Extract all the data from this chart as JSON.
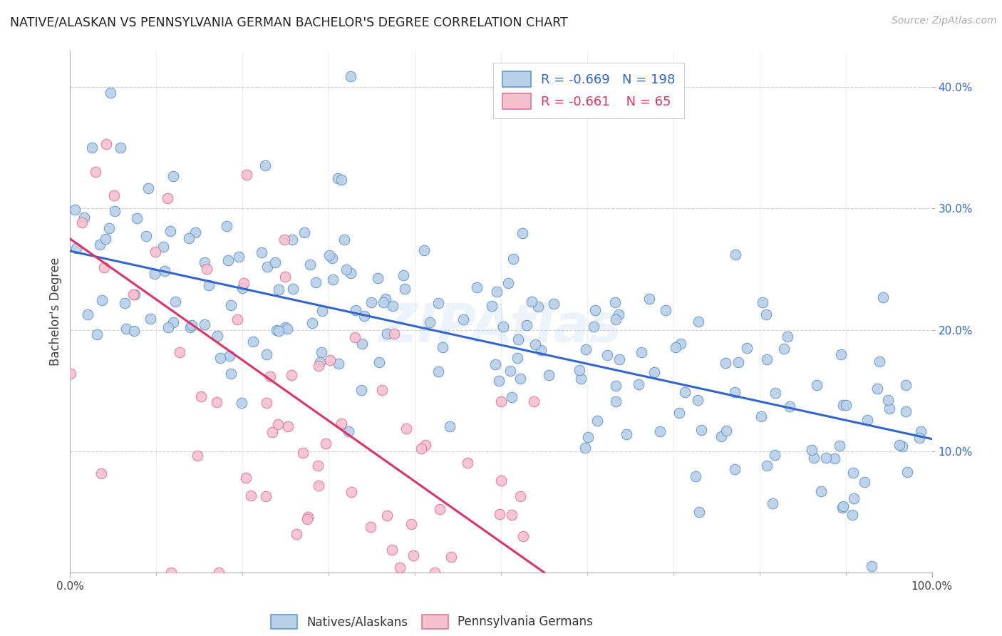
{
  "title": "NATIVE/ALASKAN VS PENNSYLVANIA GERMAN BACHELOR'S DEGREE CORRELATION CHART",
  "source": "Source: ZipAtlas.com",
  "ylabel": "Bachelor's Degree",
  "watermark": "ZIPAtlas",
  "blue_R": -0.669,
  "blue_N": 198,
  "pink_R": -0.661,
  "pink_N": 65,
  "blue_color": "#b8d0e8",
  "blue_edge_color": "#6699cc",
  "blue_line_color": "#3366cc",
  "pink_color": "#f5c0d0",
  "pink_edge_color": "#dd7799",
  "pink_line_color": "#dd3366",
  "xlim": [
    0,
    100
  ],
  "ylim": [
    0,
    43
  ],
  "blue_intercept": 26.5,
  "blue_slope": -0.155,
  "pink_intercept": 27.5,
  "pink_slope": -0.5,
  "pink_x_max": 55,
  "ytick_vals": [
    10,
    20,
    30,
    40
  ],
  "ytick_labels": [
    "10.0%",
    "20.0%",
    "30.0%",
    "40.0%"
  ],
  "xtick_left_label": "0.0%",
  "xtick_right_label": "100.0%",
  "legend_labels_bottom": [
    "Natives/Alaskans",
    "Pennsylvania Germans"
  ]
}
